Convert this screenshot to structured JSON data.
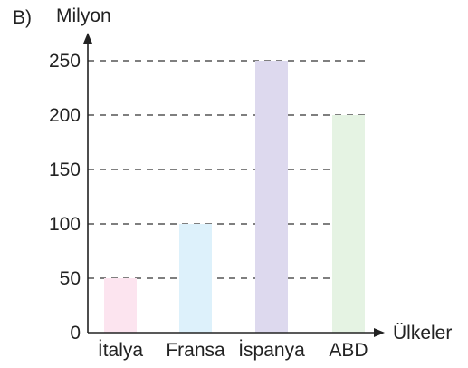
{
  "panel_label": "B)",
  "chart_data": {
    "type": "bar",
    "title": "",
    "ylabel": "Milyon",
    "xlabel": "Ülkeler",
    "categories": [
      "İtalya",
      "Fransa",
      "İspanya",
      "ABD"
    ],
    "values": [
      50,
      100,
      250,
      200
    ],
    "ylim": [
      0,
      250
    ],
    "yticks": [
      0,
      50,
      100,
      150,
      200,
      250
    ],
    "grid": true,
    "grid_style": "dashed",
    "bar_colors": [
      "#fce4ef",
      "#ddf1fb",
      "#ddd9ee",
      "#e5f3e3"
    ],
    "axis_color": "#222222",
    "grid_color": "#555555"
  }
}
